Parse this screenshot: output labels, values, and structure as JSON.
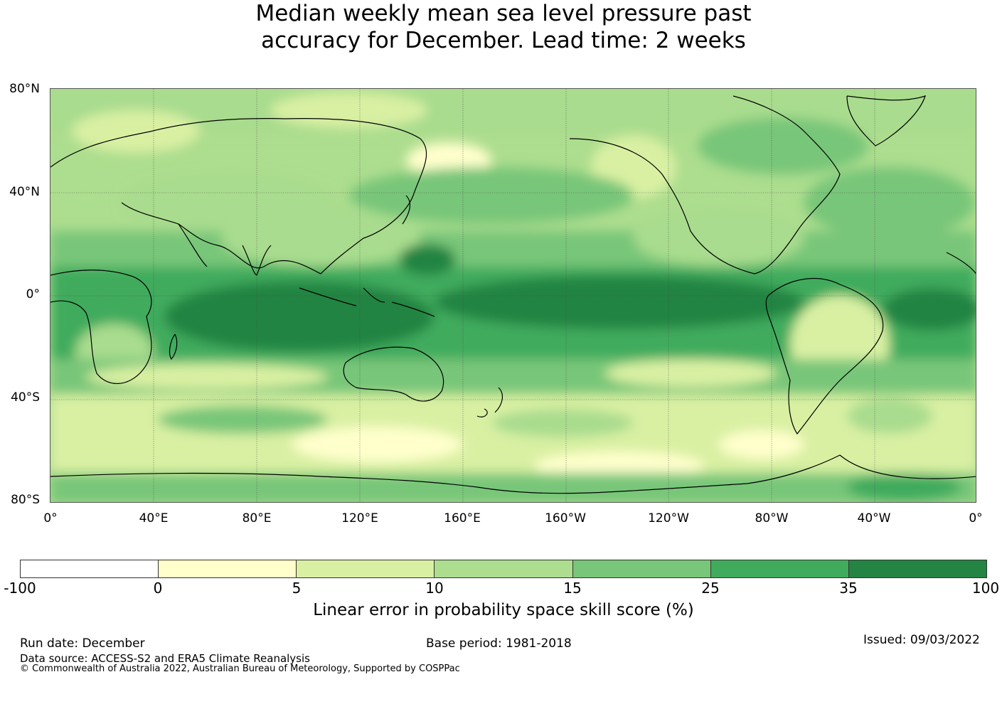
{
  "title_line1": "Median weekly mean sea level pressure past",
  "title_line2": "accuracy for December. Lead time: 2 weeks",
  "lat_labels": [
    "80°N",
    "40°N",
    "0°",
    "40°S",
    "80°S"
  ],
  "lon_labels": [
    "0°",
    "40°E",
    "80°E",
    "120°E",
    "160°E",
    "160°W",
    "120°W",
    "80°W",
    "40°W",
    "0°"
  ],
  "colorbar": {
    "ticks": [
      "-100",
      "0",
      "5",
      "10",
      "15",
      "25",
      "35",
      "100"
    ],
    "colors": [
      "#ffffff",
      "#ffffcc",
      "#d9f0a3",
      "#addd8e",
      "#78c679",
      "#41ab5d",
      "#238443"
    ],
    "label": "Linear error in probability space skill score (%)"
  },
  "footer": {
    "run_date": "Run date: December",
    "base_period": "Base period: 1981-2018",
    "issued": "Issued: 09/03/2022",
    "data_source": "Data source: ACCESS-S2 and ERA5 Climate Reanalysis",
    "copyright": "© Commonwealth of Australia 2022, Australian Bureau of Meteorology, Supported by COSPPac"
  }
}
